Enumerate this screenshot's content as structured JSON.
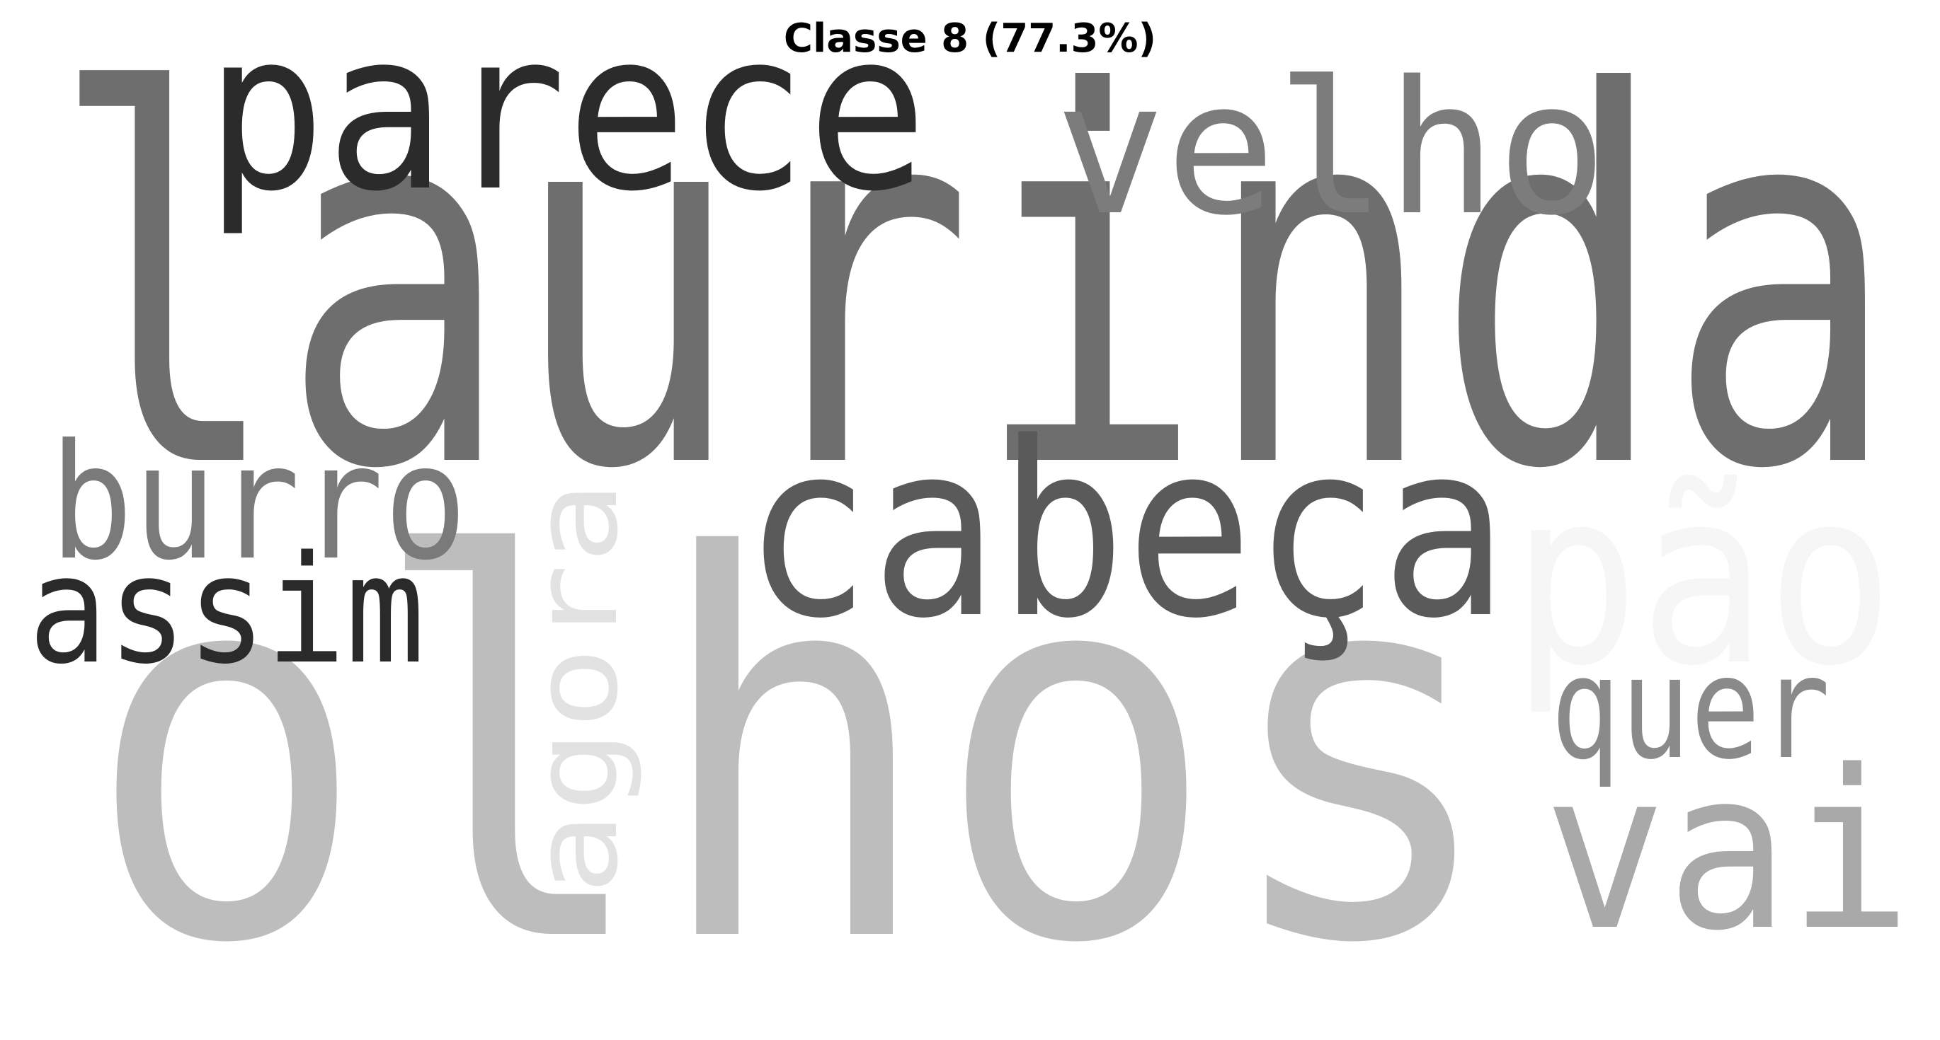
{
  "title": "Classe 8 (77.3%)",
  "words": [
    {
      "id": "laurinda",
      "text": "laurinda",
      "color": "#6e6e6e"
    },
    {
      "id": "olhos",
      "text": "olhos",
      "color": "#bdbdbd"
    },
    {
      "id": "parece",
      "text": "parece",
      "color": "#2b2b2b"
    },
    {
      "id": "velho",
      "text": "velho",
      "color": "#7c7c7c"
    },
    {
      "id": "cabeca",
      "text": "cabeça",
      "color": "#5a5a5a"
    },
    {
      "id": "burro",
      "text": "burro",
      "color": "#7a7a7a"
    },
    {
      "id": "assim",
      "text": "assim",
      "color": "#2a2a2a"
    },
    {
      "id": "agora",
      "text": "agora",
      "color": "#e2e2e2"
    },
    {
      "id": "pao",
      "text": "pão",
      "color": "#f6f6f6"
    },
    {
      "id": "quer",
      "text": "quer",
      "color": "#8a8a8a"
    },
    {
      "id": "vai",
      "text": "vai",
      "color": "#a9a9a9"
    }
  ]
}
